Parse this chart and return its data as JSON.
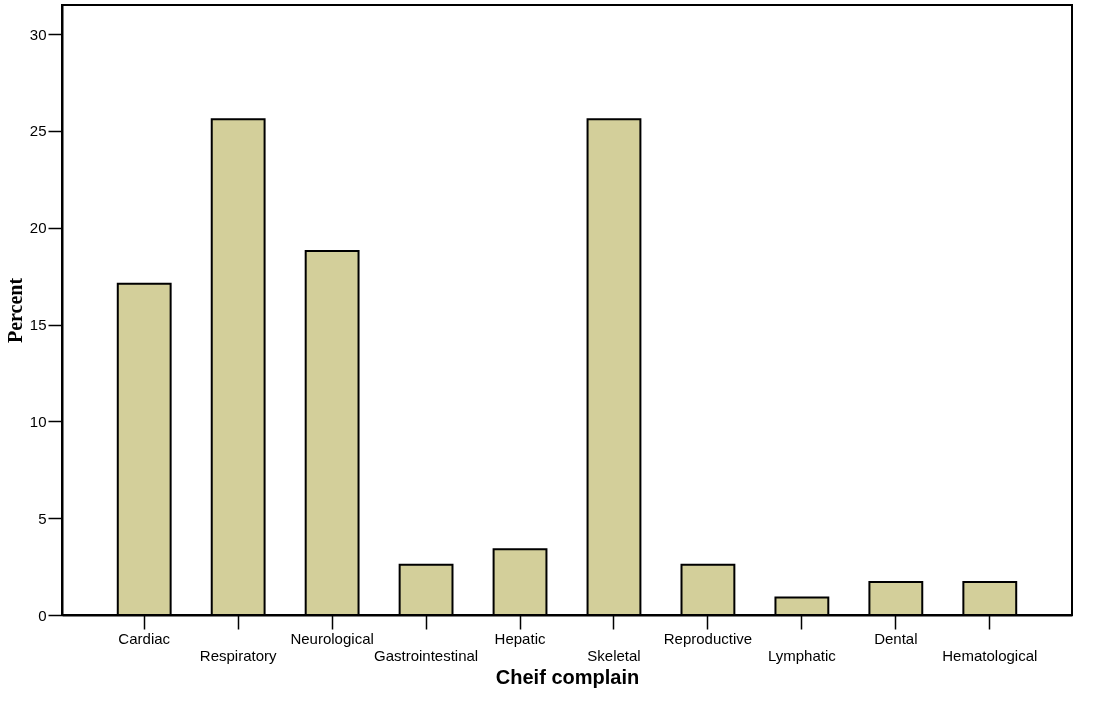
{
  "chart_data": {
    "type": "bar",
    "xlabel": "Cheif complain",
    "ylabel": "Percent",
    "categories": [
      "Cardiac",
      "Respiratory",
      "Neurological",
      "Gastrointestinal",
      "Hepatic",
      "Skeletal",
      "Reproductive",
      "Lymphatic",
      "Dental",
      "Hematological"
    ],
    "values": [
      17.1,
      25.6,
      18.8,
      2.6,
      3.4,
      25.6,
      2.6,
      0.9,
      1.7,
      1.7
    ],
    "color": "#d3cf9a",
    "ylim": [
      0,
      31.5
    ],
    "yticks": [
      0,
      5,
      10,
      15,
      20,
      25,
      30
    ],
    "grid": false
  }
}
